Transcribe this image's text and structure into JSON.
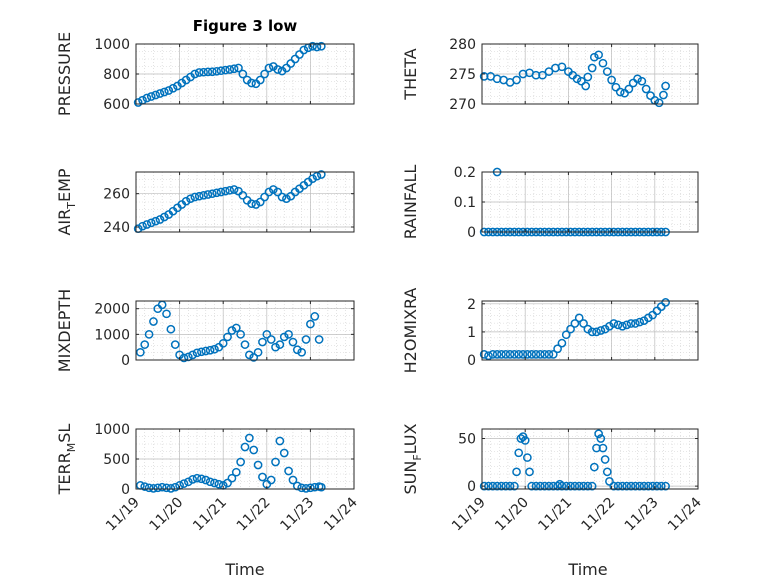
{
  "title": "Figure 3 low",
  "xlabel": "Time",
  "marker_color": "#0072BD",
  "x_dates": [
    "11/19",
    "11/20",
    "11/21",
    "11/22",
    "11/23",
    "11/24"
  ],
  "chart_data": [
    {
      "type": "scatter",
      "ylabel_parts": [
        "PRESSURE"
      ],
      "yticks": [
        "600",
        "800",
        "1000"
      ],
      "ylim": [
        600,
        1000
      ],
      "xlim": [
        0,
        5
      ],
      "grid": true,
      "x": [
        0.05,
        0.15,
        0.25,
        0.35,
        0.45,
        0.55,
        0.65,
        0.75,
        0.85,
        0.95,
        1.05,
        1.15,
        1.25,
        1.35,
        1.45,
        1.55,
        1.65,
        1.75,
        1.85,
        1.95,
        2.05,
        2.15,
        2.25,
        2.35,
        2.45,
        2.55,
        2.65,
        2.75,
        2.85,
        2.95,
        3.05,
        3.15,
        3.25,
        3.35,
        3.45,
        3.55,
        3.65,
        3.75,
        3.85,
        3.95,
        4.05,
        4.15,
        4.25
      ],
      "y": [
        610,
        625,
        640,
        650,
        660,
        670,
        680,
        690,
        705,
        720,
        740,
        760,
        780,
        800,
        810,
        812,
        814,
        815,
        818,
        822,
        826,
        830,
        835,
        840,
        800,
        760,
        740,
        735,
        760,
        800,
        840,
        850,
        830,
        820,
        840,
        870,
        900,
        930,
        960,
        975,
        985,
        980,
        985
      ]
    },
    {
      "type": "scatter",
      "ylabel_parts": [
        "THETA"
      ],
      "yticks": [
        "270",
        "275",
        "280"
      ],
      "ylim": [
        270,
        280
      ],
      "xlim": [
        0,
        5
      ],
      "grid": true,
      "x": [
        0.05,
        0.2,
        0.35,
        0.5,
        0.65,
        0.8,
        0.95,
        1.1,
        1.25,
        1.4,
        1.55,
        1.7,
        1.85,
        2.0,
        2.1,
        2.2,
        2.3,
        2.4,
        2.45,
        2.55,
        2.6,
        2.7,
        2.8,
        2.9,
        3.0,
        3.1,
        3.2,
        3.3,
        3.4,
        3.5,
        3.6,
        3.7,
        3.8,
        3.9,
        4.0,
        4.1,
        4.2,
        4.25
      ],
      "y": [
        274.6,
        274.6,
        274.2,
        274.0,
        273.6,
        274.0,
        275.0,
        275.2,
        274.8,
        274.8,
        275.4,
        276.0,
        276.2,
        275.4,
        274.8,
        274.2,
        273.8,
        273.0,
        274.5,
        276.0,
        277.8,
        278.2,
        276.8,
        275.4,
        274.0,
        272.8,
        272.0,
        271.8,
        272.5,
        273.5,
        274.2,
        273.8,
        272.5,
        271.4,
        270.6,
        270.2,
        271.5,
        273.0
      ]
    },
    {
      "type": "scatter",
      "ylabel_parts": [
        "AIR",
        "T",
        "EMP"
      ],
      "yticks": [
        "240",
        "260"
      ],
      "ylim": [
        237,
        273
      ],
      "xlim": [
        0,
        5
      ],
      "grid": true,
      "x": [
        0.05,
        0.15,
        0.25,
        0.35,
        0.45,
        0.55,
        0.65,
        0.75,
        0.85,
        0.95,
        1.05,
        1.15,
        1.25,
        1.35,
        1.45,
        1.55,
        1.65,
        1.75,
        1.85,
        1.95,
        2.05,
        2.15,
        2.25,
        2.35,
        2.45,
        2.55,
        2.65,
        2.75,
        2.85,
        2.95,
        3.05,
        3.15,
        3.25,
        3.35,
        3.45,
        3.55,
        3.65,
        3.75,
        3.85,
        3.95,
        4.05,
        4.15,
        4.25
      ],
      "y": [
        239,
        240.5,
        241.5,
        242.5,
        243.5,
        244.5,
        246,
        247.5,
        249.5,
        251.5,
        253.5,
        255.5,
        257,
        258,
        258.5,
        259,
        259.5,
        260,
        260.5,
        261,
        261.5,
        262,
        262.5,
        261.5,
        259,
        256,
        254,
        253.5,
        255,
        258,
        261,
        262.5,
        261,
        258,
        257,
        258.5,
        261,
        263,
        265,
        267,
        269,
        270.5,
        271.5
      ]
    },
    {
      "type": "scatter",
      "ylabel_parts": [
        "RAINFALL"
      ],
      "yticks": [
        "0",
        "0.1",
        "0.2"
      ],
      "ylim": [
        0,
        0.2
      ],
      "xlim": [
        0,
        5
      ],
      "grid": true,
      "x": [
        0.05,
        0.15,
        0.25,
        0.35,
        0.45,
        0.55,
        0.65,
        0.75,
        0.85,
        0.95,
        1.05,
        1.15,
        1.25,
        1.35,
        1.45,
        1.55,
        1.65,
        1.75,
        1.85,
        1.95,
        2.05,
        2.15,
        2.25,
        2.35,
        2.45,
        2.55,
        2.65,
        2.75,
        2.85,
        2.95,
        3.05,
        3.15,
        3.25,
        3.35,
        3.45,
        3.55,
        3.65,
        3.75,
        3.85,
        3.95,
        4.05,
        4.15,
        4.25,
        0.35
      ],
      "y": [
        0,
        0,
        0,
        0,
        0,
        0,
        0,
        0,
        0,
        0,
        0,
        0,
        0,
        0,
        0,
        0,
        0,
        0,
        0,
        0,
        0,
        0,
        0,
        0,
        0,
        0,
        0,
        0,
        0,
        0,
        0,
        0,
        0,
        0,
        0,
        0,
        0,
        0,
        0,
        0,
        0,
        0,
        0,
        0.2
      ]
    },
    {
      "type": "scatter",
      "ylabel_parts": [
        "MIXDEPTH"
      ],
      "yticks": [
        "0",
        "1000",
        "2000"
      ],
      "ylim": [
        0,
        2300
      ],
      "xlim": [
        0,
        5
      ],
      "grid": true,
      "x": [
        0.1,
        0.2,
        0.3,
        0.4,
        0.5,
        0.6,
        0.7,
        0.8,
        0.9,
        1.0,
        1.1,
        1.2,
        1.3,
        1.4,
        1.5,
        1.6,
        1.7,
        1.8,
        1.9,
        2.0,
        2.1,
        2.2,
        2.3,
        2.4,
        2.5,
        2.6,
        2.7,
        2.8,
        2.9,
        3.0,
        3.1,
        3.2,
        3.3,
        3.4,
        3.5,
        3.6,
        3.7,
        3.8,
        3.9,
        4.0,
        4.1,
        4.2
      ],
      "y": [
        300,
        600,
        1000,
        1500,
        2000,
        2150,
        1800,
        1200,
        600,
        200,
        80,
        120,
        200,
        280,
        320,
        350,
        380,
        420,
        500,
        650,
        900,
        1150,
        1250,
        1000,
        600,
        200,
        100,
        300,
        700,
        1000,
        800,
        500,
        600,
        900,
        1000,
        700,
        400,
        300,
        800,
        1400,
        1700,
        800
      ]
    },
    {
      "type": "scatter",
      "ylabel_parts": [
        "H2OMIXRA"
      ],
      "yticks": [
        "0",
        "1",
        "2"
      ],
      "ylim": [
        0,
        2.1
      ],
      "xlim": [
        0,
        5
      ],
      "grid": true,
      "x": [
        0.05,
        0.15,
        0.25,
        0.35,
        0.45,
        0.55,
        0.65,
        0.75,
        0.85,
        0.95,
        1.05,
        1.15,
        1.25,
        1.35,
        1.45,
        1.55,
        1.65,
        1.75,
        1.85,
        1.95,
        2.05,
        2.15,
        2.25,
        2.35,
        2.45,
        2.55,
        2.65,
        2.75,
        2.85,
        2.95,
        3.05,
        3.15,
        3.25,
        3.35,
        3.45,
        3.55,
        3.65,
        3.75,
        3.85,
        3.95,
        4.05,
        4.15,
        4.25
      ],
      "y": [
        0.2,
        0.15,
        0.2,
        0.2,
        0.2,
        0.2,
        0.2,
        0.2,
        0.2,
        0.2,
        0.2,
        0.2,
        0.2,
        0.2,
        0.2,
        0.2,
        0.2,
        0.4,
        0.6,
        0.9,
        1.1,
        1.3,
        1.5,
        1.3,
        1.1,
        1.0,
        1.0,
        1.05,
        1.1,
        1.2,
        1.3,
        1.25,
        1.2,
        1.25,
        1.3,
        1.3,
        1.35,
        1.4,
        1.5,
        1.6,
        1.75,
        1.9,
        2.05
      ]
    },
    {
      "type": "scatter",
      "ylabel_parts": [
        "TERR",
        "M",
        "SL"
      ],
      "yticks": [
        "0",
        "500",
        "1000"
      ],
      "ylim": [
        0,
        1000
      ],
      "xlim": [
        0,
        5
      ],
      "grid": true,
      "x": [
        0.1,
        0.2,
        0.3,
        0.4,
        0.5,
        0.6,
        0.7,
        0.8,
        0.9,
        1.0,
        1.1,
        1.2,
        1.3,
        1.4,
        1.5,
        1.6,
        1.7,
        1.8,
        1.9,
        2.0,
        2.1,
        2.2,
        2.3,
        2.4,
        2.5,
        2.6,
        2.7,
        2.8,
        2.9,
        3.0,
        3.1,
        3.2,
        3.3,
        3.4,
        3.5,
        3.6,
        3.7,
        3.8,
        3.9,
        4.0,
        4.1,
        4.2,
        4.25
      ],
      "y": [
        60,
        40,
        20,
        10,
        20,
        30,
        20,
        10,
        30,
        60,
        90,
        120,
        160,
        180,
        170,
        150,
        120,
        100,
        80,
        60,
        100,
        180,
        280,
        450,
        700,
        850,
        650,
        400,
        200,
        80,
        150,
        450,
        800,
        600,
        300,
        150,
        50,
        20,
        10,
        20,
        30,
        40,
        30
      ]
    },
    {
      "type": "scatter",
      "ylabel_parts": [
        "SUN",
        "F",
        "LUX"
      ],
      "yticks": [
        "0",
        "50"
      ],
      "ylim": [
        -3,
        60
      ],
      "xlim": [
        0,
        5
      ],
      "grid": true,
      "x": [
        0.05,
        0.15,
        0.25,
        0.35,
        0.45,
        0.55,
        0.65,
        0.75,
        0.8,
        0.85,
        0.9,
        0.95,
        1.0,
        1.05,
        1.1,
        1.15,
        1.25,
        1.35,
        1.45,
        1.55,
        1.65,
        1.75,
        1.85,
        1.95,
        2.05,
        2.15,
        2.25,
        2.35,
        2.45,
        2.55,
        2.6,
        2.65,
        2.7,
        2.75,
        2.8,
        2.85,
        2.9,
        2.95,
        3.05,
        3.15,
        3.25,
        3.35,
        3.45,
        3.55,
        3.65,
        3.75,
        3.85,
        3.95,
        4.05,
        4.15,
        4.25,
        1.8
      ],
      "y": [
        0,
        0,
        0,
        0,
        0,
        0,
        0,
        0,
        15,
        35,
        50,
        52,
        48,
        30,
        15,
        0,
        0,
        0,
        0,
        0,
        0,
        0,
        0,
        0,
        0,
        0,
        0,
        0,
        0,
        0,
        20,
        40,
        55,
        50,
        40,
        28,
        15,
        5,
        0,
        0,
        0,
        0,
        0,
        0,
        0,
        0,
        0,
        0,
        0,
        0,
        0,
        2
      ]
    }
  ]
}
